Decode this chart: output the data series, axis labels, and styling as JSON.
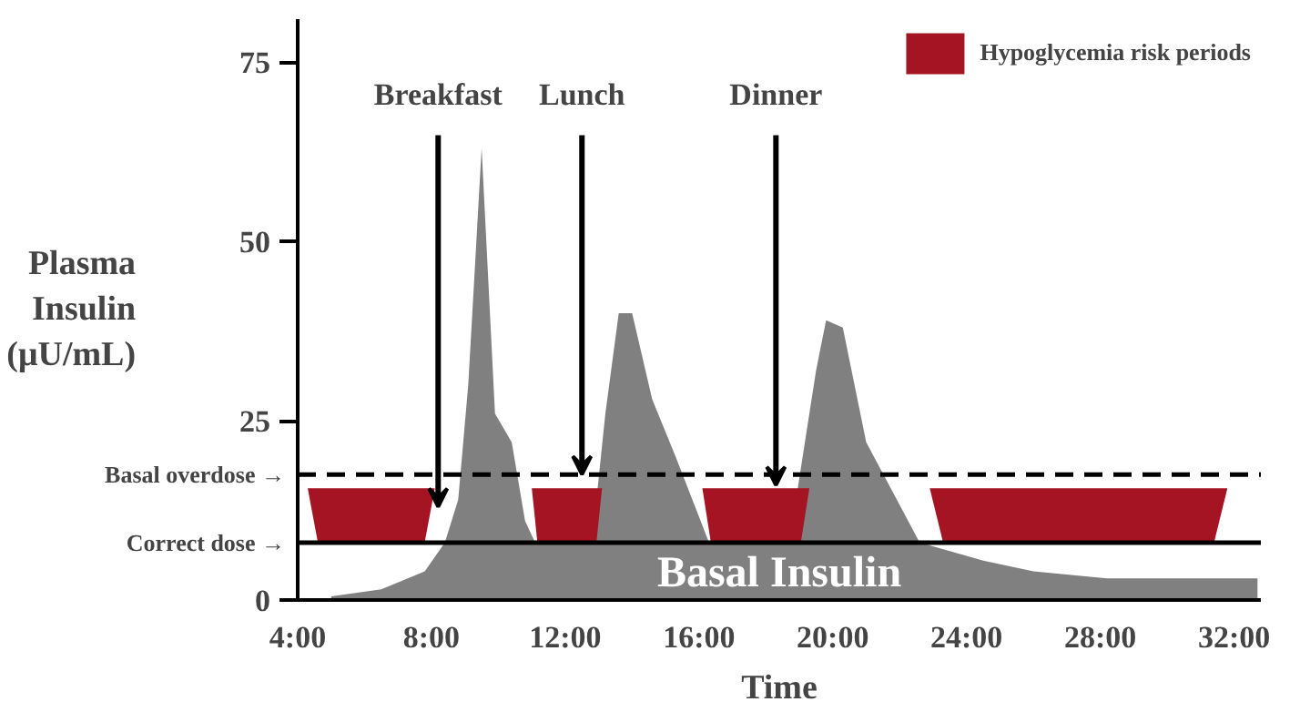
{
  "chart_data": {
    "type": "area",
    "xlabel": "Time",
    "ylabel": "Plasma\nInsulin\n(μU/mL)",
    "x": [
      5.0,
      6.5,
      7.8,
      8.4,
      8.8,
      9.1,
      9.5,
      9.9,
      10.4,
      10.8,
      11.1,
      12.8,
      13.2,
      13.6,
      14.0,
      14.6,
      15.3,
      16.3,
      18.7,
      19.5,
      19.8,
      20.3,
      21.0,
      22.6,
      24.5,
      26.0,
      28.2,
      30.0,
      32.7
    ],
    "series": [
      {
        "color": "#808080",
        "values": [
          0.5,
          1.5,
          4,
          8,
          14,
          30,
          63,
          26,
          22,
          11,
          8,
          8,
          26,
          40,
          40,
          28,
          20,
          8,
          8,
          32,
          39,
          38,
          22,
          8,
          5.5,
          4,
          3,
          3,
          3
        ]
      }
    ],
    "xlim": [
      4,
      32.8
    ],
    "ylim": [
      0,
      81
    ],
    "xticks": [
      {
        "value": 4,
        "label": "4:00"
      },
      {
        "value": 8,
        "label": "8:00"
      },
      {
        "value": 12,
        "label": "12:00"
      },
      {
        "value": 16,
        "label": "16:00"
      },
      {
        "value": 20,
        "label": "20:00"
      },
      {
        "value": 24,
        "label": "24:00"
      },
      {
        "value": 28,
        "label": "28:00"
      },
      {
        "value": 32,
        "label": "32:00"
      }
    ],
    "yticks": [
      0,
      25,
      50,
      75
    ],
    "ref_lines": [
      {
        "axis": "y",
        "value": 17.5,
        "label": "Basal overdose →",
        "line_style": "dashed",
        "color": "#000000"
      },
      {
        "axis": "y",
        "value": 8,
        "label": "Correct dose →",
        "line_style": "solid",
        "color": "#000000"
      }
    ],
    "bands": [
      {
        "axis": "x",
        "from": 4.3,
        "to": 8.1,
        "label": "Hypoglycemia risk periods",
        "color": "#a51422"
      },
      {
        "axis": "x",
        "from": 11.0,
        "to": 13.1,
        "color": "#a51422"
      },
      {
        "axis": "x",
        "from": 16.1,
        "to": 19.3,
        "color": "#a51422"
      },
      {
        "axis": "x",
        "from": 22.9,
        "to": 31.8,
        "color": "#a51422"
      }
    ],
    "annotations": [
      {
        "text": "Breakfast",
        "x": 8.2,
        "y": 13
      },
      {
        "text": "Lunch",
        "x": 12.5,
        "y": 17.5
      },
      {
        "text": "Dinner",
        "x": 18.3,
        "y": 16
      },
      "Basal Insulin"
    ],
    "legend": "top right",
    "grid": false
  }
}
